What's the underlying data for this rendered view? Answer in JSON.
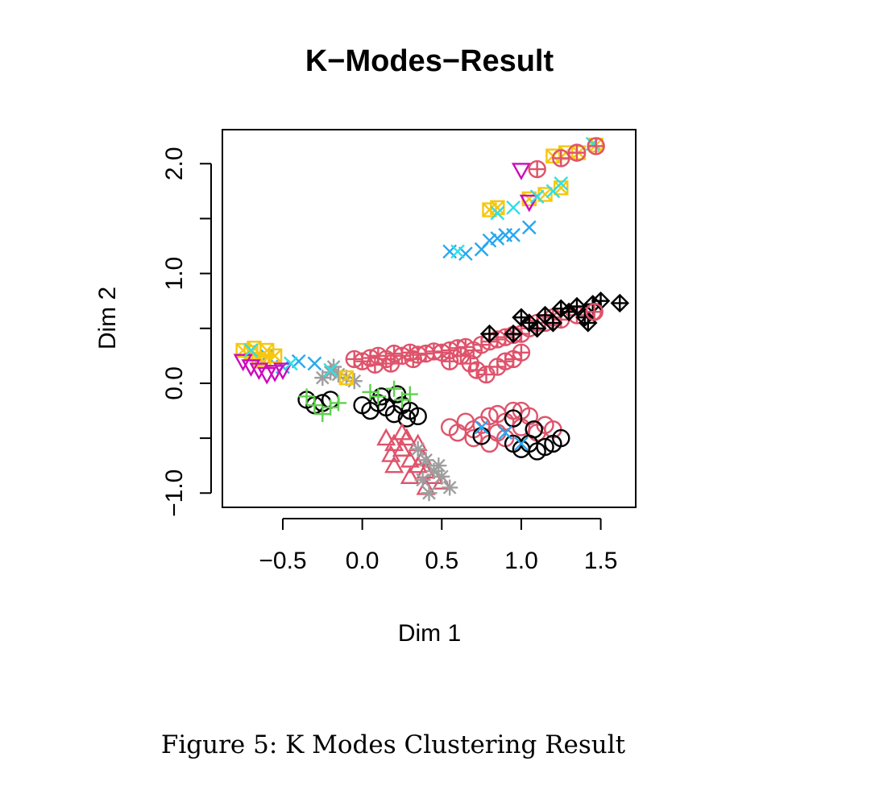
{
  "caption": "Figure 5: K Modes Clustering Result",
  "chart_data": {
    "type": "scatter",
    "title": "K−Modes−Result",
    "xlabel": "Dim 1",
    "ylabel": "Dim 2",
    "xlim": [
      -0.88,
      1.72
    ],
    "ylim": [
      -1.13,
      2.31
    ],
    "x_ticks": [
      -0.5,
      0.0,
      0.5,
      1.0,
      1.5
    ],
    "x_tick_labels": [
      "−0.5",
      "0.0",
      "0.5",
      "1.0",
      "1.5"
    ],
    "y_ticks": [
      -1.0,
      -0.5,
      0.0,
      0.5,
      1.0,
      1.5,
      2.0
    ],
    "y_tick_labels": [
      "−1.0",
      "",
      "0.0",
      "",
      "1.0",
      "",
      "2.0"
    ],
    "grid": false,
    "legend": "none",
    "series": [
      {
        "symbol": "circle-plus",
        "color": "#df536b",
        "points": [
          [
            -0.05,
            0.22
          ],
          [
            0.0,
            0.2
          ],
          [
            0.05,
            0.23
          ],
          [
            0.1,
            0.25
          ],
          [
            0.15,
            0.22
          ],
          [
            0.2,
            0.27
          ],
          [
            0.25,
            0.25
          ],
          [
            0.3,
            0.28
          ],
          [
            0.35,
            0.26
          ],
          [
            0.4,
            0.27
          ],
          [
            0.45,
            0.29
          ],
          [
            0.5,
            0.28
          ],
          [
            0.55,
            0.3
          ],
          [
            0.6,
            0.32
          ],
          [
            0.65,
            0.33
          ],
          [
            0.7,
            0.3
          ],
          [
            0.75,
            0.35
          ],
          [
            0.8,
            0.38
          ],
          [
            0.85,
            0.4
          ],
          [
            0.9,
            0.42
          ],
          [
            0.95,
            0.44
          ],
          [
            1.0,
            0.45
          ],
          [
            1.05,
            0.5
          ],
          [
            1.1,
            0.55
          ],
          [
            1.15,
            0.55
          ],
          [
            1.2,
            0.6
          ],
          [
            1.25,
            0.58
          ],
          [
            1.35,
            0.62
          ],
          [
            1.45,
            0.65
          ],
          [
            0.68,
            0.18
          ],
          [
            0.72,
            0.12
          ],
          [
            0.78,
            0.08
          ],
          [
            0.85,
            0.15
          ],
          [
            0.9,
            0.2
          ],
          [
            0.95,
            0.22
          ],
          [
            1.0,
            0.28
          ],
          [
            0.08,
            0.17
          ],
          [
            0.18,
            0.18
          ],
          [
            0.32,
            0.22
          ],
          [
            0.55,
            0.2
          ],
          [
            0.62,
            0.25
          ]
        ]
      },
      {
        "symbol": "circle",
        "color": "#df536b",
        "points": [
          [
            0.55,
            -0.4
          ],
          [
            0.6,
            -0.45
          ],
          [
            0.65,
            -0.35
          ],
          [
            0.7,
            -0.42
          ],
          [
            0.75,
            -0.38
          ],
          [
            0.8,
            -0.3
          ],
          [
            0.85,
            -0.45
          ],
          [
            0.9,
            -0.35
          ],
          [
            0.95,
            -0.25
          ],
          [
            1.0,
            -0.4
          ],
          [
            1.05,
            -0.3
          ],
          [
            1.1,
            -0.45
          ],
          [
            1.15,
            -0.38
          ],
          [
            1.2,
            -0.42
          ],
          [
            0.9,
            -0.5
          ],
          [
            0.8,
            -0.55
          ],
          [
            0.7,
            -0.5
          ],
          [
            1.0,
            -0.25
          ],
          [
            0.85,
            -0.28
          ]
        ]
      },
      {
        "symbol": "circle",
        "color": "#000000",
        "points": [
          [
            -0.35,
            -0.15
          ],
          [
            -0.3,
            -0.2
          ],
          [
            -0.25,
            -0.18
          ],
          [
            -0.2,
            -0.15
          ],
          [
            0.0,
            -0.2
          ],
          [
            0.05,
            -0.25
          ],
          [
            0.1,
            -0.18
          ],
          [
            0.15,
            -0.22
          ],
          [
            0.2,
            -0.28
          ],
          [
            0.25,
            -0.2
          ],
          [
            0.3,
            -0.25
          ],
          [
            0.35,
            -0.3
          ],
          [
            0.12,
            -0.12
          ],
          [
            0.22,
            -0.1
          ],
          [
            0.28,
            -0.32
          ],
          [
            0.95,
            -0.32
          ],
          [
            1.0,
            -0.6
          ],
          [
            1.05,
            -0.55
          ],
          [
            1.1,
            -0.62
          ],
          [
            1.15,
            -0.58
          ],
          [
            1.2,
            -0.55
          ],
          [
            1.25,
            -0.5
          ],
          [
            0.95,
            -0.55
          ],
          [
            1.08,
            -0.42
          ],
          [
            0.75,
            -0.48
          ]
        ]
      },
      {
        "symbol": "diamond-plus",
        "color": "#000000",
        "points": [
          [
            0.8,
            0.45
          ],
          [
            0.95,
            0.45
          ],
          [
            1.0,
            0.6
          ],
          [
            1.05,
            0.55
          ],
          [
            1.1,
            0.5
          ],
          [
            1.15,
            0.62
          ],
          [
            1.2,
            0.55
          ],
          [
            1.25,
            0.68
          ],
          [
            1.3,
            0.65
          ],
          [
            1.35,
            0.7
          ],
          [
            1.4,
            0.6
          ],
          [
            1.45,
            0.72
          ],
          [
            1.5,
            0.75
          ],
          [
            1.42,
            0.55
          ],
          [
            1.62,
            0.73
          ]
        ]
      },
      {
        "symbol": "triangle",
        "color": "#df536b",
        "points": [
          [
            0.15,
            -0.5
          ],
          [
            0.2,
            -0.55
          ],
          [
            0.25,
            -0.6
          ],
          [
            0.3,
            -0.7
          ],
          [
            0.35,
            -0.75
          ],
          [
            0.4,
            -0.8
          ],
          [
            0.45,
            -0.85
          ],
          [
            0.5,
            -0.9
          ],
          [
            0.25,
            -0.45
          ],
          [
            0.35,
            -0.55
          ],
          [
            0.2,
            -0.75
          ],
          [
            0.3,
            -0.85
          ],
          [
            0.4,
            -0.95
          ],
          [
            0.28,
            -0.5
          ],
          [
            0.18,
            -0.65
          ],
          [
            0.38,
            -0.68
          ]
        ]
      },
      {
        "symbol": "asterisk",
        "color": "#9e9e9e",
        "points": [
          [
            -0.25,
            0.05
          ],
          [
            -0.2,
            0.1
          ],
          [
            -0.15,
            0.08
          ],
          [
            -0.1,
            0.05
          ],
          [
            -0.05,
            0.02
          ],
          [
            0.35,
            -0.6
          ],
          [
            0.4,
            -0.7
          ],
          [
            0.45,
            -0.8
          ],
          [
            0.5,
            -0.85
          ],
          [
            0.55,
            -0.95
          ],
          [
            0.42,
            -1.0
          ],
          [
            0.48,
            -0.75
          ],
          [
            0.38,
            -0.88
          ],
          [
            -0.18,
            0.15
          ]
        ]
      },
      {
        "symbol": "plus",
        "color": "#61d04f",
        "points": [
          [
            -0.35,
            -0.12
          ],
          [
            -0.3,
            -0.2
          ],
          [
            -0.25,
            -0.28
          ],
          [
            -0.2,
            -0.22
          ],
          [
            -0.15,
            -0.18
          ],
          [
            0.05,
            -0.08
          ],
          [
            0.1,
            -0.12
          ],
          [
            0.2,
            -0.05
          ],
          [
            0.25,
            -0.15
          ],
          [
            0.3,
            -0.1
          ]
        ]
      },
      {
        "symbol": "cross",
        "color": "#28a7f0",
        "points": [
          [
            0.55,
            1.2
          ],
          [
            0.65,
            1.18
          ],
          [
            0.75,
            1.22
          ],
          [
            0.8,
            1.3
          ],
          [
            0.85,
            1.32
          ],
          [
            0.9,
            1.35
          ],
          [
            0.95,
            1.35
          ],
          [
            1.05,
            1.42
          ],
          [
            -0.6,
            0.25
          ],
          [
            -0.5,
            0.15
          ],
          [
            -0.4,
            0.2
          ],
          [
            -0.3,
            0.18
          ],
          [
            0.9,
            -0.45
          ],
          [
            0.75,
            -0.4
          ],
          [
            1.0,
            -0.55
          ]
        ]
      },
      {
        "symbol": "square-cross",
        "color": "#f5c710",
        "points": [
          [
            -0.75,
            0.3
          ],
          [
            -0.7,
            0.28
          ],
          [
            -0.65,
            0.22
          ],
          [
            -0.6,
            0.3
          ],
          [
            -0.55,
            0.25
          ],
          [
            -0.68,
            0.32
          ],
          [
            -0.62,
            0.2
          ],
          [
            -0.1,
            0.05
          ],
          [
            0.8,
            1.58
          ],
          [
            0.85,
            1.6
          ],
          [
            1.05,
            1.68
          ],
          [
            1.15,
            1.72
          ],
          [
            1.25,
            1.78
          ],
          [
            1.2,
            2.07
          ],
          [
            1.28,
            2.1
          ],
          [
            1.36,
            2.1
          ],
          [
            1.47,
            2.17
          ]
        ]
      },
      {
        "symbol": "triangle-down",
        "color": "#cd0bbc",
        "points": [
          [
            -0.75,
            0.2
          ],
          [
            -0.7,
            0.15
          ],
          [
            -0.65,
            0.12
          ],
          [
            -0.6,
            0.08
          ],
          [
            -0.55,
            0.1
          ],
          [
            -0.5,
            0.12
          ],
          [
            1.0,
            1.94
          ],
          [
            1.05,
            1.65
          ]
        ]
      },
      {
        "symbol": "cross",
        "color": "#2edfe8",
        "points": [
          [
            0.6,
            1.2
          ],
          [
            0.85,
            1.55
          ],
          [
            0.95,
            1.6
          ],
          [
            1.1,
            1.7
          ],
          [
            1.2,
            1.75
          ],
          [
            1.25,
            1.82
          ],
          [
            1.45,
            2.18
          ],
          [
            -0.7,
            0.3
          ],
          [
            -0.45,
            0.18
          ],
          [
            -0.2,
            0.12
          ]
        ]
      },
      {
        "symbol": "circle-plus",
        "color": "#df536b",
        "points": [
          [
            1.1,
            1.95
          ],
          [
            1.25,
            2.05
          ],
          [
            1.35,
            2.1
          ],
          [
            1.47,
            2.16
          ],
          [
            1.46,
            0.65
          ]
        ]
      }
    ]
  }
}
